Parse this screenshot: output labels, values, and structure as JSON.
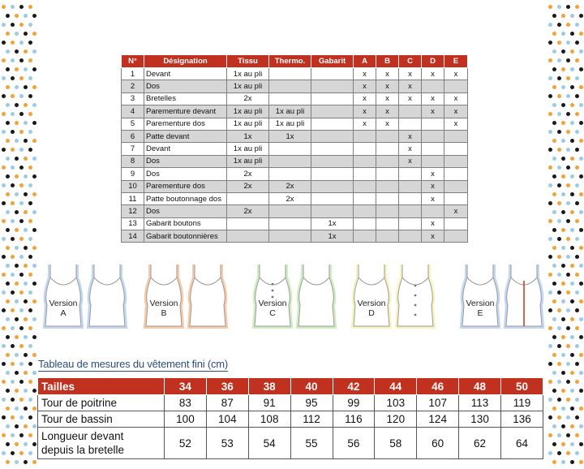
{
  "pieces_table": {
    "headers": [
      "N°",
      "Désignation",
      "Tissu",
      "Thermo.",
      "Gabarit",
      "A",
      "B",
      "C",
      "D",
      "E"
    ],
    "rows": [
      [
        "1",
        "Devant",
        "1x au pli",
        "",
        "",
        "x",
        "x",
        "x",
        "x",
        "x"
      ],
      [
        "2",
        "Dos",
        "1x au pli",
        "",
        "",
        "x",
        "x",
        "x",
        "",
        ""
      ],
      [
        "3",
        "Bretelles",
        "2x",
        "",
        "",
        "x",
        "x",
        "x",
        "x",
        "x"
      ],
      [
        "4",
        "Parementure devant",
        "1x au pli",
        "1x au pli",
        "",
        "x",
        "x",
        "",
        "x",
        "x"
      ],
      [
        "5",
        "Parementure dos",
        "1x au pli",
        "1x au pli",
        "",
        "x",
        "x",
        "",
        "",
        "x"
      ],
      [
        "6",
        "Patte devant",
        "1x",
        "1x",
        "",
        "",
        "",
        "x",
        "",
        ""
      ],
      [
        "7",
        "Devant",
        "1x au pli",
        "",
        "",
        "",
        "",
        "x",
        "",
        ""
      ],
      [
        "8",
        "Dos",
        "1x au pli",
        "",
        "",
        "",
        "",
        "x",
        "",
        ""
      ],
      [
        "9",
        "Dos",
        "2x",
        "",
        "",
        "",
        "",
        "",
        "x",
        ""
      ],
      [
        "10",
        "Parementure dos",
        "2x",
        "2x",
        "",
        "",
        "",
        "",
        "x",
        ""
      ],
      [
        "11",
        "Patte boutonnage dos",
        "",
        "2x",
        "",
        "",
        "",
        "",
        "x",
        ""
      ],
      [
        "12",
        "Dos",
        "2x",
        "",
        "",
        "",
        "",
        "",
        "",
        "x"
      ],
      [
        "13",
        "Gabarit boutons",
        "",
        "",
        "1x",
        "",
        "",
        "",
        "x",
        ""
      ],
      [
        "14",
        "Gabarit boutonnières",
        "",
        "",
        "1x",
        "",
        "",
        "",
        "x",
        ""
      ]
    ]
  },
  "versions": [
    {
      "label_line1": "Version",
      "label_line2": "A",
      "glow": "#8fb8e8"
    },
    {
      "label_line1": "Version",
      "label_line2": "B",
      "glow": "#f0a060"
    },
    {
      "label_line1": "Version",
      "label_line2": "C",
      "glow": "#a8e08a"
    },
    {
      "label_line1": "Version",
      "label_line2": "D",
      "glow": "#f2ea8a"
    },
    {
      "label_line1": "Version",
      "label_line2": "E",
      "glow": "#8fb8e8"
    }
  ],
  "measurements_title": "Tableau de mesures du vêtement fini (cm)",
  "measurements_table": {
    "headers": [
      "Tailles",
      "34",
      "36",
      "38",
      "40",
      "42",
      "44",
      "46",
      "48",
      "50"
    ],
    "rows": [
      {
        "label": "Tour de poitrine",
        "values": [
          "83",
          "87",
          "91",
          "95",
          "99",
          "103",
          "107",
          "113",
          "119"
        ]
      },
      {
        "label": "Tour de bassin",
        "values": [
          "100",
          "104",
          "108",
          "112",
          "116",
          "120",
          "124",
          "130",
          "136"
        ]
      },
      {
        "label_line1": "Longueur devant",
        "label_line2": "depuis la bretelle",
        "values": [
          "52",
          "53",
          "54",
          "55",
          "56",
          "58",
          "60",
          "62",
          "64"
        ]
      }
    ]
  },
  "colors": {
    "header_red": "#c0321f",
    "row_shade": "#d6d6d6",
    "title_blue": "#2d4f7c",
    "dot_colors": [
      "#f2a23a",
      "#9ccbe6",
      "#1a1a1a"
    ]
  }
}
